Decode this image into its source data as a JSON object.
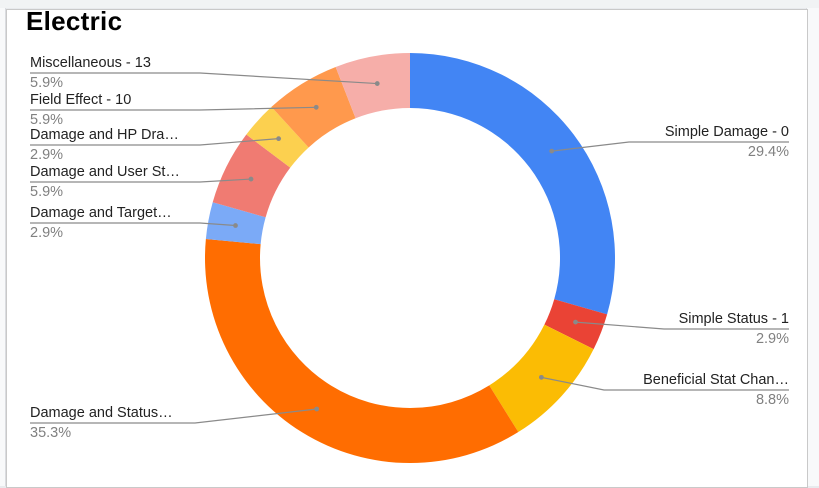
{
  "chart_data": {
    "type": "pie",
    "donut": true,
    "title": "Electric",
    "legend": "none",
    "slices": [
      {
        "label": "Simple Damage - 0",
        "pct_label": "29.4%",
        "value": 29.4,
        "color": "#4285f4",
        "side": "right"
      },
      {
        "label": "Simple Status - 1",
        "pct_label": "2.9%",
        "value": 2.9,
        "color": "#ea4335",
        "side": "right"
      },
      {
        "label": "Beneficial Stat Chan…",
        "pct_label": "8.8%",
        "value": 8.8,
        "color": "#fbbc04",
        "side": "right"
      },
      {
        "label": "Damage and Status…",
        "pct_label": "35.3%",
        "value": 35.3,
        "color": "#ff6d01",
        "side": "left"
      },
      {
        "label": "Damage and Target…",
        "pct_label": "2.9%",
        "value": 2.9,
        "color": "#7baaf7",
        "side": "left"
      },
      {
        "label": "Damage and User St…",
        "pct_label": "5.9%",
        "value": 5.9,
        "color": "#f07b72",
        "side": "left"
      },
      {
        "label": "Damage and HP Dra…",
        "pct_label": "2.9%",
        "value": 2.9,
        "color": "#fcd04f",
        "side": "left"
      },
      {
        "label": "Field Effect - 10",
        "pct_label": "5.9%",
        "value": 5.9,
        "color": "#ff994d",
        "side": "left"
      },
      {
        "label": "Miscellaneous - 13",
        "pct_label": "5.9%",
        "value": 5.9,
        "color": "#f6aea9",
        "side": "left"
      }
    ]
  }
}
